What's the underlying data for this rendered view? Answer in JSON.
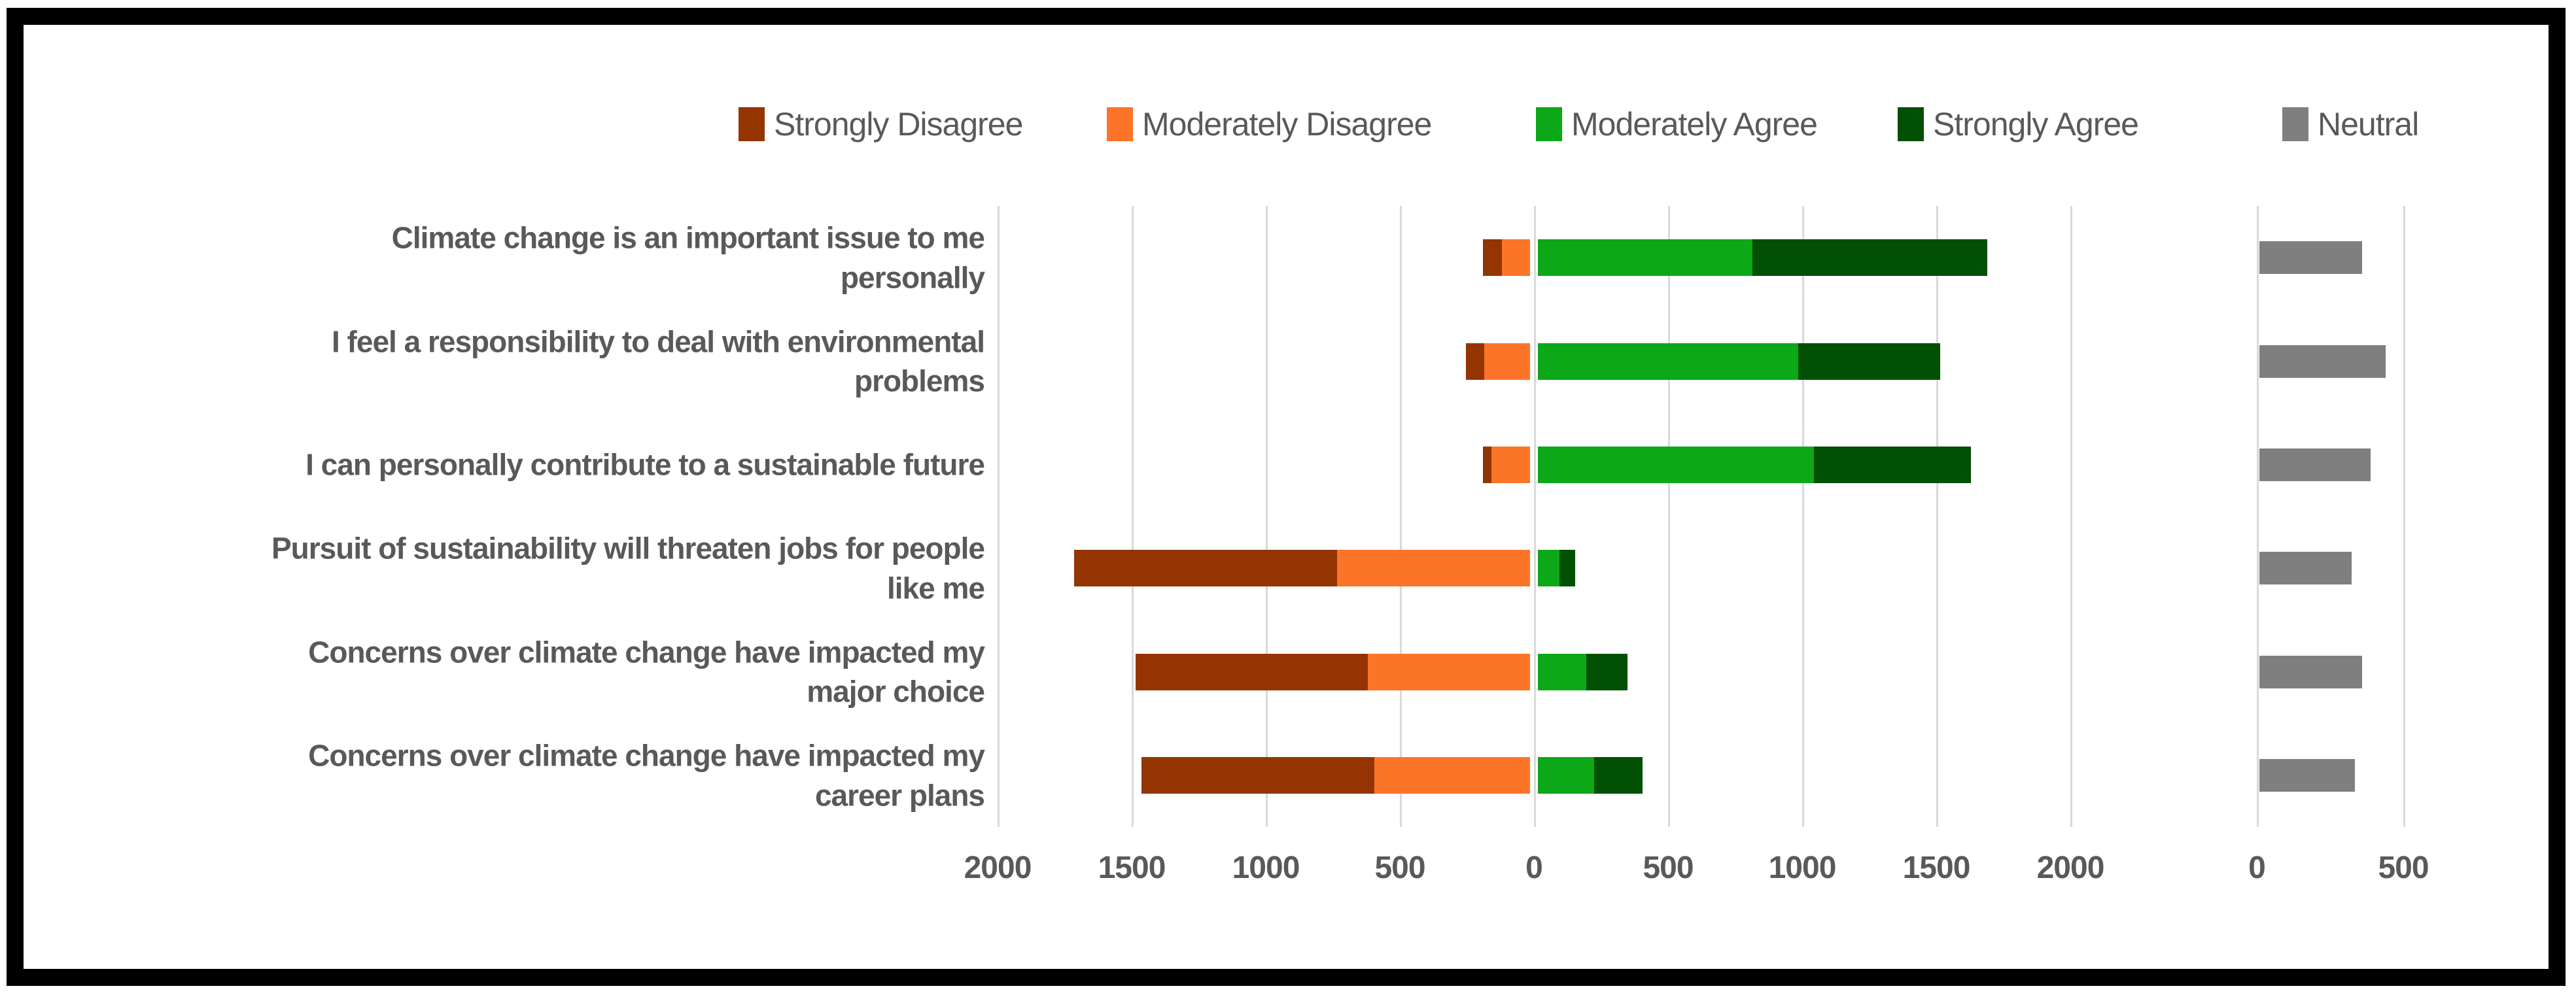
{
  "chart_data": {
    "type": "bar",
    "orientation": "horizontal",
    "subtype": "diverging-stacked-likert",
    "title": "",
    "categories": [
      "Climate change is an important issue to me\npersonally",
      "I feel a responsibility to deal with environmental\nproblems",
      "I can personally contribute to a sustainable future",
      "Pursuit of sustainability will threaten jobs for people\nlike me",
      "Concerns over climate change have impacted my\nmajor choice",
      "Concerns over climate change have impacted my\ncareer plans"
    ],
    "series": [
      {
        "name": "Strongly Disagree",
        "color": "#943400",
        "panel": "main",
        "side": "negative",
        "values": [
          70,
          70,
          30,
          980,
          865,
          870
        ]
      },
      {
        "name": "Moderately Disagree",
        "color": "#FC7428",
        "panel": "main",
        "side": "negative",
        "values": [
          105,
          170,
          145,
          720,
          605,
          580
        ]
      },
      {
        "name": "Moderately Agree",
        "color": "#0CA818",
        "panel": "main",
        "side": "positive",
        "values": [
          800,
          970,
          1030,
          80,
          180,
          210
        ]
      },
      {
        "name": "Strongly Agree",
        "color": "#015004",
        "panel": "main",
        "side": "positive",
        "values": [
          875,
          530,
          585,
          60,
          155,
          180
        ]
      },
      {
        "name": "Neutral",
        "color": "#7F7F7F",
        "panel": "secondary",
        "side": "positive",
        "values": [
          350,
          430,
          380,
          315,
          350,
          325
        ]
      }
    ],
    "main_axis": {
      "range": [
        -2000,
        2500
      ],
      "ticks": [
        -2000,
        -1500,
        -1000,
        -500,
        0,
        500,
        1000,
        1500,
        2000
      ],
      "tick_labels": [
        "2000",
        "1500",
        "1000",
        "500",
        "0",
        "500",
        "1000",
        "1500",
        "2000"
      ]
    },
    "secondary_axis": {
      "range": [
        0,
        1000
      ],
      "ticks": [
        0,
        500
      ],
      "tick_labels": [
        "0",
        "500"
      ]
    },
    "legend": [
      "Strongly Disagree",
      "Moderately Disagree",
      "Moderately Agree",
      "Strongly Agree",
      "Neutral"
    ],
    "legend_position": "top",
    "grid": true,
    "colors": {
      "strongly_disagree": "#943400",
      "moderately_disagree": "#FC7428",
      "moderately_agree": "#0CA818",
      "strongly_agree": "#015004",
      "neutral": "#7F7F7F",
      "text": "#595959",
      "gridline": "#D9D9D9",
      "frame": "#000000",
      "background": "#FFFFFF"
    }
  }
}
